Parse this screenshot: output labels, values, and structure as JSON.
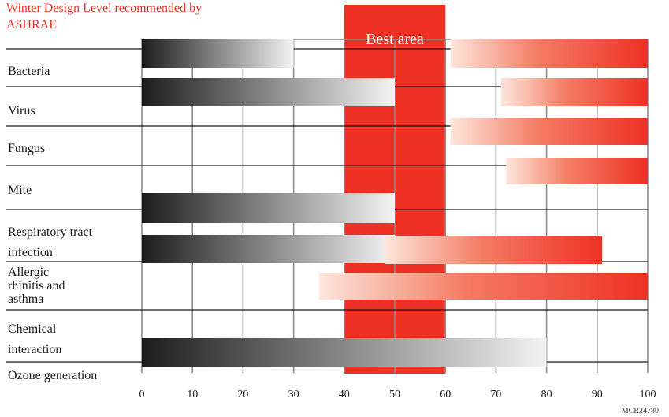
{
  "chart_data": {
    "type": "bar",
    "title_lines": [
      "Winter Design Level recommended by",
      "ASHRAE"
    ],
    "best_area_label": "Best area",
    "best_area": [
      40,
      60
    ],
    "xlim": [
      0,
      100
    ],
    "x_ticks": [
      0,
      10,
      20,
      30,
      40,
      50,
      60,
      70,
      80,
      90,
      100
    ],
    "grid": true,
    "figure_code": "MCR24780",
    "colors": {
      "accent": "#ee3124",
      "dark": "#1c1c1c",
      "grid": "#8c8c8c"
    },
    "categories": [
      {
        "label_lines": [
          "Bacteria"
        ]
      },
      {
        "label_lines": [
          "Virus"
        ]
      },
      {
        "label_lines": [
          "Fungus"
        ]
      },
      {
        "label_lines": [
          "Mite"
        ]
      },
      {
        "label_lines": [
          "Respiratory tract",
          "infection"
        ]
      },
      {
        "label_lines": [
          "Allergic",
          "rhinitis and",
          "asthma"
        ]
      },
      {
        "label_lines": [
          "Chemical",
          "interaction"
        ]
      },
      {
        "label_lines": [
          "Ozone generation"
        ]
      }
    ],
    "bars": [
      {
        "category": "Bacteria",
        "start": 0,
        "end": 30,
        "style": "gray"
      },
      {
        "category": "Bacteria",
        "start": 61,
        "end": 100,
        "style": "red"
      },
      {
        "category": "Virus",
        "start": 0,
        "end": 50,
        "style": "gray"
      },
      {
        "category": "Virus",
        "start": 71,
        "end": 100,
        "style": "red"
      },
      {
        "category": "Fungus",
        "start": 61,
        "end": 100,
        "style": "red"
      },
      {
        "category": "Mite",
        "start": 72,
        "end": 100,
        "style": "red"
      },
      {
        "category": "Respiratory tract infection",
        "start": 0,
        "end": 50,
        "style": "gray"
      },
      {
        "category": "Respiratory tract infection",
        "start": 0,
        "end": 50,
        "style": "gray"
      },
      {
        "category": "Respiratory tract infection",
        "start": 48,
        "end": 91,
        "style": "red"
      },
      {
        "category": "Allergic rhinitis and asthma",
        "start": 35,
        "end": 100,
        "style": "red"
      },
      {
        "category": "Chemical interaction",
        "start": 0,
        "end": 80,
        "style": "gray"
      }
    ]
  }
}
